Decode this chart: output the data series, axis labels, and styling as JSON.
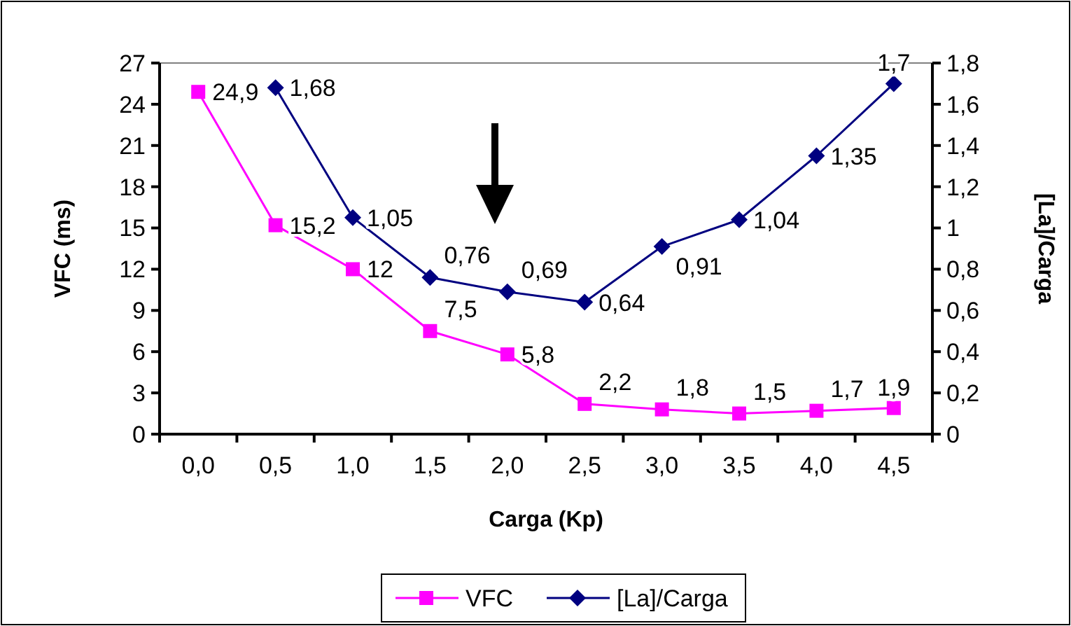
{
  "chart_data": {
    "type": "line",
    "xlabel": "Carga (Kp)",
    "ylabel": "VFC (ms)",
    "y2label": "[La]/Carga",
    "categories": [
      "0,0",
      "0,5",
      "1,0",
      "1,5",
      "2,0",
      "2,5",
      "3,0",
      "3,5",
      "4,0",
      "4,5"
    ],
    "series": [
      {
        "name": "VFC",
        "color": "#ff00ff",
        "marker": "square",
        "values": [
          24.9,
          15.2,
          12,
          7.5,
          5.8,
          2.2,
          1.8,
          1.5,
          1.7,
          1.9
        ],
        "value_labels": [
          "24,9",
          "15,2",
          "12",
          "7,5",
          "5,8",
          "2,2",
          "1,8",
          "1,5",
          "1,7",
          "1,9"
        ]
      },
      {
        "name": "[La]/Carga",
        "color": "#000080",
        "marker": "diamond",
        "axis": "y2",
        "values": [
          null,
          1.68,
          1.05,
          0.76,
          0.69,
          0.64,
          0.91,
          1.04,
          1.35,
          1.7
        ],
        "value_labels": [
          null,
          "1,68",
          "1,05",
          "0,76",
          "0,69",
          "0,64",
          "0,91",
          "1,04",
          "1,35",
          "1,7"
        ]
      }
    ],
    "ylim": [
      0,
      27
    ],
    "yticks": [
      0,
      3,
      6,
      9,
      12,
      15,
      18,
      21,
      24,
      27
    ],
    "y2lim": [
      0,
      1.8
    ],
    "y2ticks": [
      0,
      {
        "value": 0.2,
        "label": "0,2"
      },
      {
        "value": 0.4,
        "label": "0,4"
      },
      {
        "value": 0.6,
        "label": "0,6"
      },
      {
        "value": 0.8,
        "label": "0,8"
      },
      1,
      {
        "value": 1.2,
        "label": "1,2"
      },
      {
        "value": 1.4,
        "label": "1,4"
      },
      {
        "value": 1.6,
        "label": "1,6"
      },
      {
        "value": 1.8,
        "label": "1,8"
      }
    ],
    "grid": false,
    "legend": "bottom"
  }
}
